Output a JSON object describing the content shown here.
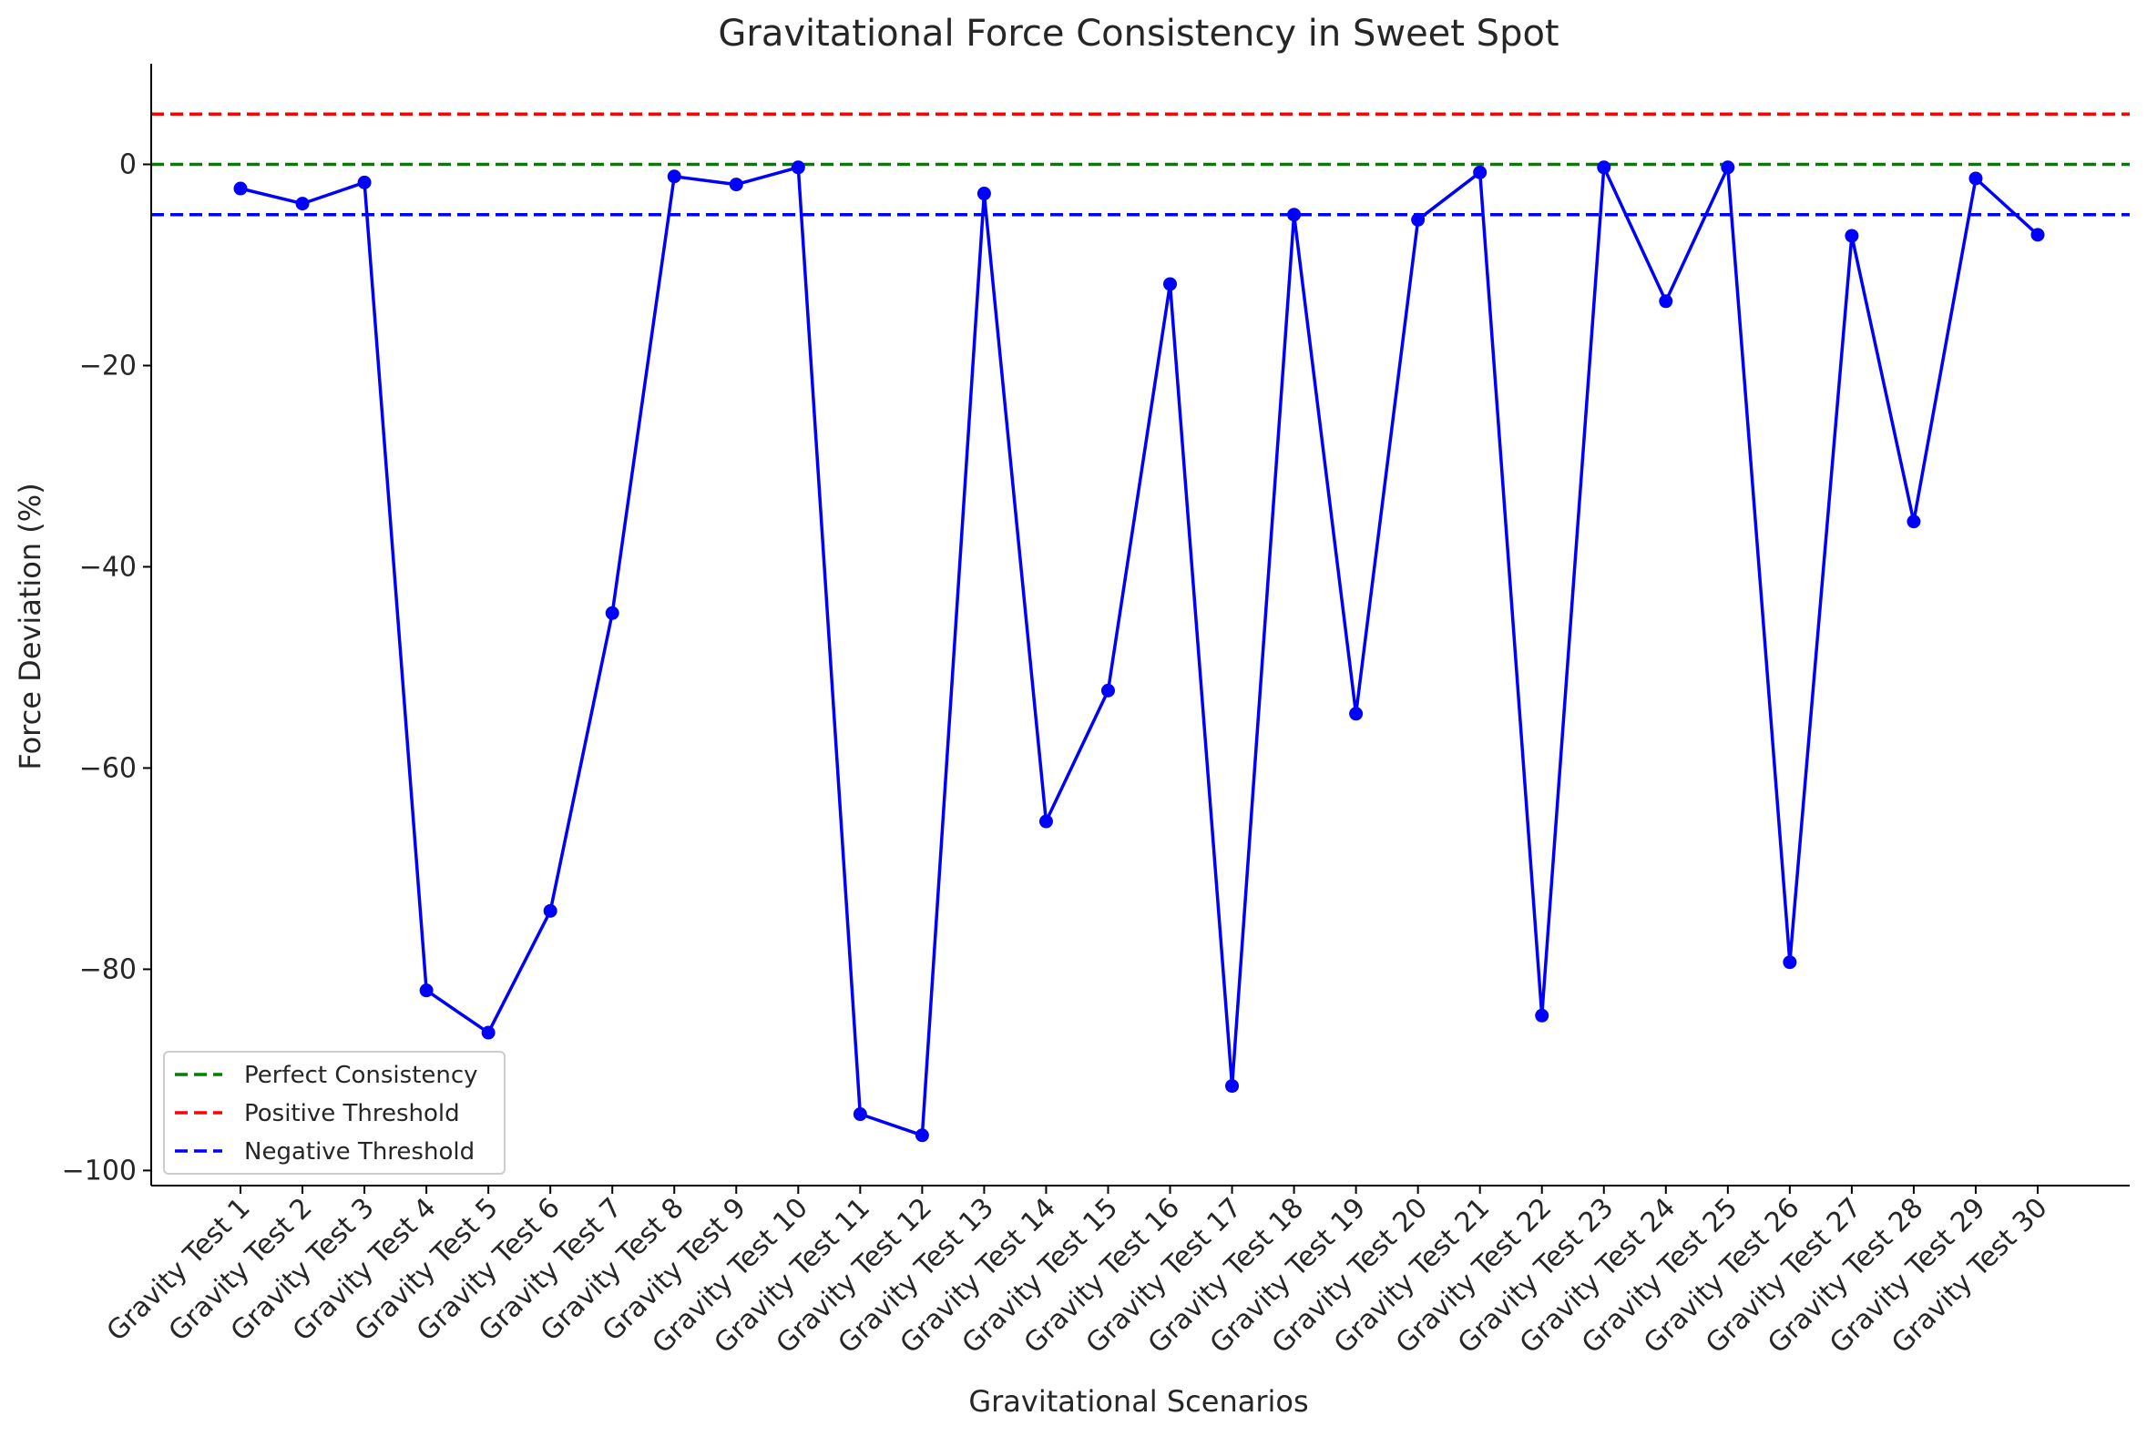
{
  "chart_data": {
    "type": "line",
    "title": "Gravitational Force Consistency in Sweet Spot",
    "xlabel": "Gravitational Scenarios",
    "ylabel": "Force Deviation (%)",
    "ylim": [
      -101.5,
      10
    ],
    "yticks": [
      0,
      -20,
      -40,
      -60,
      -80,
      -100
    ],
    "grid": false,
    "legend_position": "lower-left",
    "categories": [
      "Gravity Test 1",
      "Gravity Test 2",
      "Gravity Test 3",
      "Gravity Test 4",
      "Gravity Test 5",
      "Gravity Test 6",
      "Gravity Test 7",
      "Gravity Test 8",
      "Gravity Test 9",
      "Gravity Test 10",
      "Gravity Test 11",
      "Gravity Test 12",
      "Gravity Test 13",
      "Gravity Test 14",
      "Gravity Test 15",
      "Gravity Test 16",
      "Gravity Test 17",
      "Gravity Test 18",
      "Gravity Test 19",
      "Gravity Test 20",
      "Gravity Test 21",
      "Gravity Test 22",
      "Gravity Test 23",
      "Gravity Test 24",
      "Gravity Test 25",
      "Gravity Test 26",
      "Gravity Test 27",
      "Gravity Test 28",
      "Gravity Test 29",
      "Gravity Test 30"
    ],
    "series": [
      {
        "color": "#0000ff",
        "values": [
          -2.4,
          -3.9,
          -1.8,
          -82.1,
          -86.3,
          -74.2,
          -44.6,
          -1.2,
          -2.0,
          -0.3,
          -94.4,
          -96.5,
          -2.9,
          -65.3,
          -52.3,
          -11.9,
          -91.6,
          -5.0,
          -54.6,
          -5.5,
          -0.8,
          -84.6,
          -0.3,
          -13.6,
          -0.3,
          -79.3,
          -7.1,
          -35.5,
          -1.4,
          -7.0
        ]
      }
    ],
    "reference_lines": [
      {
        "name": "Perfect Consistency",
        "y": 0,
        "color": "#008000"
      },
      {
        "name": "Positive Threshold",
        "y": 5,
        "color": "#ff0000"
      },
      {
        "name": "Negative Threshold",
        "y": -5,
        "color": "#0000ff"
      }
    ]
  }
}
